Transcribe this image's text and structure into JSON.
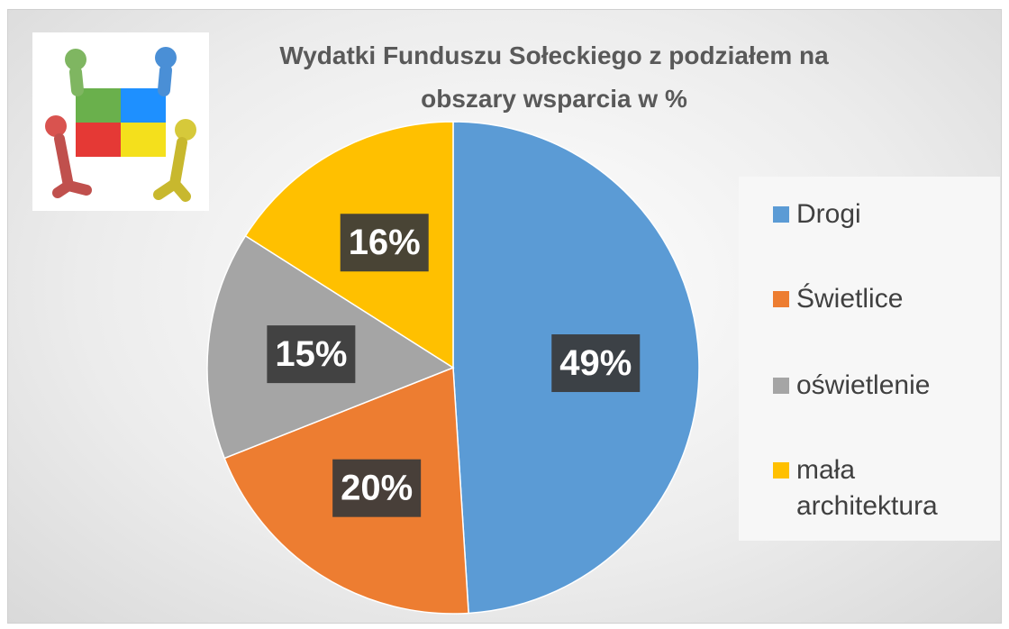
{
  "chart_data": {
    "type": "pie",
    "title": "Wydatki Funduszu Sołeckiego z podziałem na obszary wsparcia w %",
    "categories": [
      "Drogi",
      "Świetlice",
      "oświetlenie",
      "mała architektura"
    ],
    "values": [
      49,
      20,
      15,
      16
    ],
    "value_labels": [
      "49%",
      "20%",
      "15%",
      "16%"
    ],
    "colors": [
      "#5b9bd5",
      "#ed7d31",
      "#a5a5a5",
      "#ffc000"
    ],
    "legend": "right"
  }
}
